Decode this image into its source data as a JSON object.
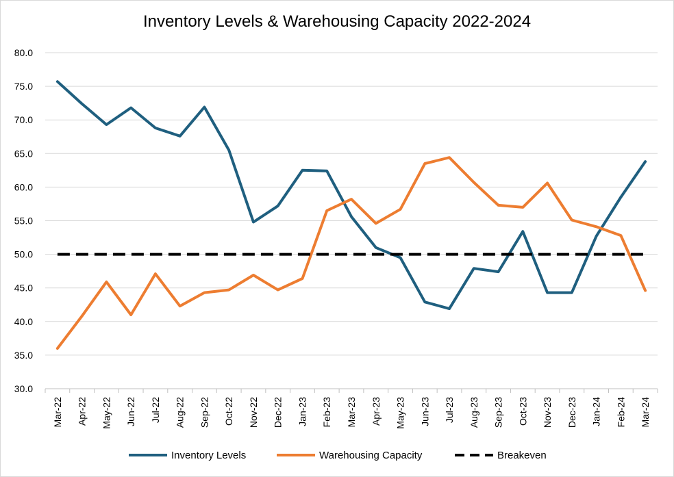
{
  "chart_data": {
    "type": "line",
    "title": "Inventory Levels & Warehousing Capacity 2022-2024",
    "xlabel": "",
    "ylabel": "",
    "ylim": [
      30,
      80
    ],
    "yticks": [
      "30.0",
      "35.0",
      "40.0",
      "45.0",
      "50.0",
      "55.0",
      "60.0",
      "65.0",
      "70.0",
      "75.0",
      "80.0"
    ],
    "grid": true,
    "legend_position": "bottom",
    "categories": [
      "Mar-22",
      "Apr-22",
      "May-22",
      "Jun-22",
      "Jul-22",
      "Aug-22",
      "Sep-22",
      "Oct-22",
      "Nov-22",
      "Dec-22",
      "Jan-23",
      "Feb-23",
      "Mar-23",
      "Apr-23",
      "May-23",
      "Jun-23",
      "Jul-23",
      "Aug-23",
      "Sep-23",
      "Oct-23",
      "Nov-23",
      "Dec-23",
      "Jan-24",
      "Feb-24",
      "Mar-24"
    ],
    "series": [
      {
        "name": "Inventory Levels",
        "color": "#1f5f7f",
        "style": "solid",
        "values": [
          75.7,
          72.4,
          69.3,
          71.8,
          68.8,
          67.6,
          71.9,
          65.5,
          54.8,
          57.2,
          62.5,
          62.4,
          55.6,
          51.0,
          49.5,
          42.9,
          41.9,
          47.9,
          47.4,
          53.4,
          44.3,
          44.3,
          52.7,
          58.5,
          63.8
        ]
      },
      {
        "name": "Warehousing Capacity",
        "color": "#ed7d31",
        "style": "solid",
        "values": [
          36.0,
          40.8,
          45.9,
          41.0,
          47.1,
          42.3,
          44.3,
          44.7,
          46.9,
          44.7,
          46.4,
          56.5,
          58.2,
          54.6,
          56.7,
          63.5,
          64.4,
          60.7,
          57.3,
          57.0,
          60.6,
          55.1,
          54.1,
          52.8,
          44.6
        ]
      },
      {
        "name": "Breakeven",
        "color": "#000000",
        "style": "dashed",
        "values": [
          50,
          50,
          50,
          50,
          50,
          50,
          50,
          50,
          50,
          50,
          50,
          50,
          50,
          50,
          50,
          50,
          50,
          50,
          50,
          50,
          50,
          50,
          50,
          50,
          50
        ]
      }
    ]
  }
}
